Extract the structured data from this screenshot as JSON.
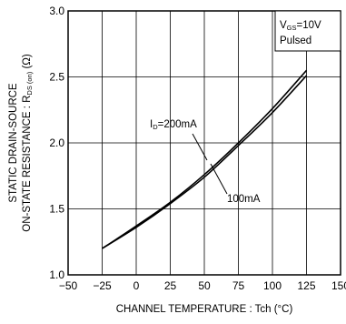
{
  "chart_data": {
    "type": "line",
    "xlabel": "CHANNEL  TEMPERATURE : Tch (°C)",
    "ylabel": {
      "line1": "STATIC DRAIN-SOURCE",
      "line2_pre": "ON-STATE  RESISTANCE :  R",
      "line2_sub": "DS (on)",
      "line2_post": "  (Ω)"
    },
    "xlim": [
      -50,
      150
    ],
    "ylim": [
      1.0,
      3.0
    ],
    "xticks": [
      -50,
      -25,
      0,
      25,
      50,
      75,
      100,
      125,
      150
    ],
    "yticks": [
      1.0,
      1.5,
      2.0,
      2.5,
      3.0
    ],
    "xtick_labels": [
      "−50",
      "−25",
      "0",
      "25",
      "50",
      "75",
      "100",
      "125",
      "150"
    ],
    "ytick_labels": [
      "1.0",
      "1.5",
      "2.0",
      "2.5",
      "3.0"
    ],
    "grid": true,
    "conditions": {
      "line1_pre": "V",
      "line1_sub": "GS",
      "line1_post": "=10V",
      "line2": "Pulsed"
    },
    "series": [
      {
        "name": "ID=200mA",
        "label_pre": "I",
        "label_sub": "D",
        "label_post": "=200mA",
        "x": [
          -25,
          0,
          25,
          50,
          75,
          100,
          125
        ],
        "y": [
          1.2,
          1.37,
          1.55,
          1.76,
          2.0,
          2.26,
          2.55
        ]
      },
      {
        "name": "100mA",
        "label": "100mA",
        "x": [
          -25,
          0,
          25,
          50,
          75,
          100,
          125
        ],
        "y": [
          1.2,
          1.36,
          1.54,
          1.74,
          1.98,
          2.23,
          2.51
        ]
      }
    ]
  }
}
